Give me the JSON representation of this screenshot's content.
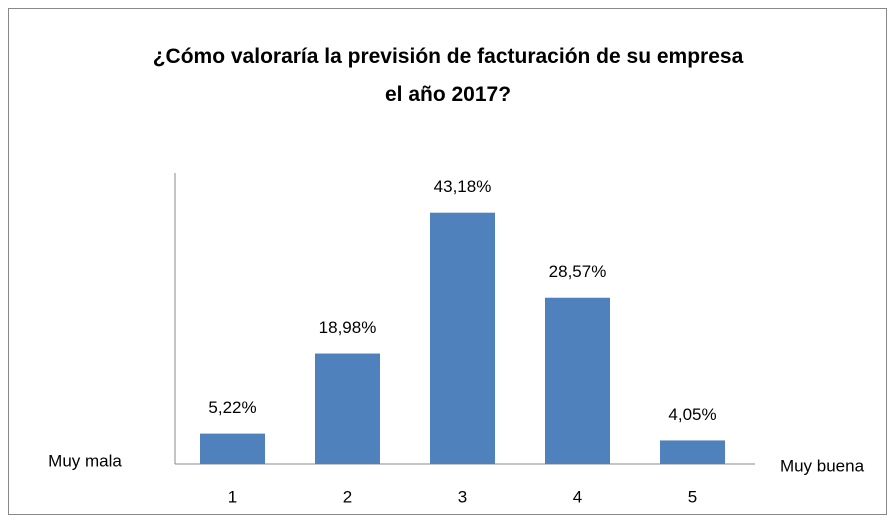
{
  "chart_data": {
    "type": "bar",
    "title": "¿Cómo valoraría la previsión de facturación de su empresa el año 2017?",
    "categories": [
      "1",
      "2",
      "3",
      "4",
      "5"
    ],
    "values": [
      5.22,
      18.98,
      43.18,
      28.57,
      4.05
    ],
    "value_labels": [
      "5,22%",
      "18,98%",
      "43,18%",
      "28,57%",
      "4,05%"
    ],
    "color": "#4f81bd",
    "ylim": [
      0,
      50
    ],
    "annotations": [
      "Muy mala",
      "Muy buena"
    ]
  }
}
